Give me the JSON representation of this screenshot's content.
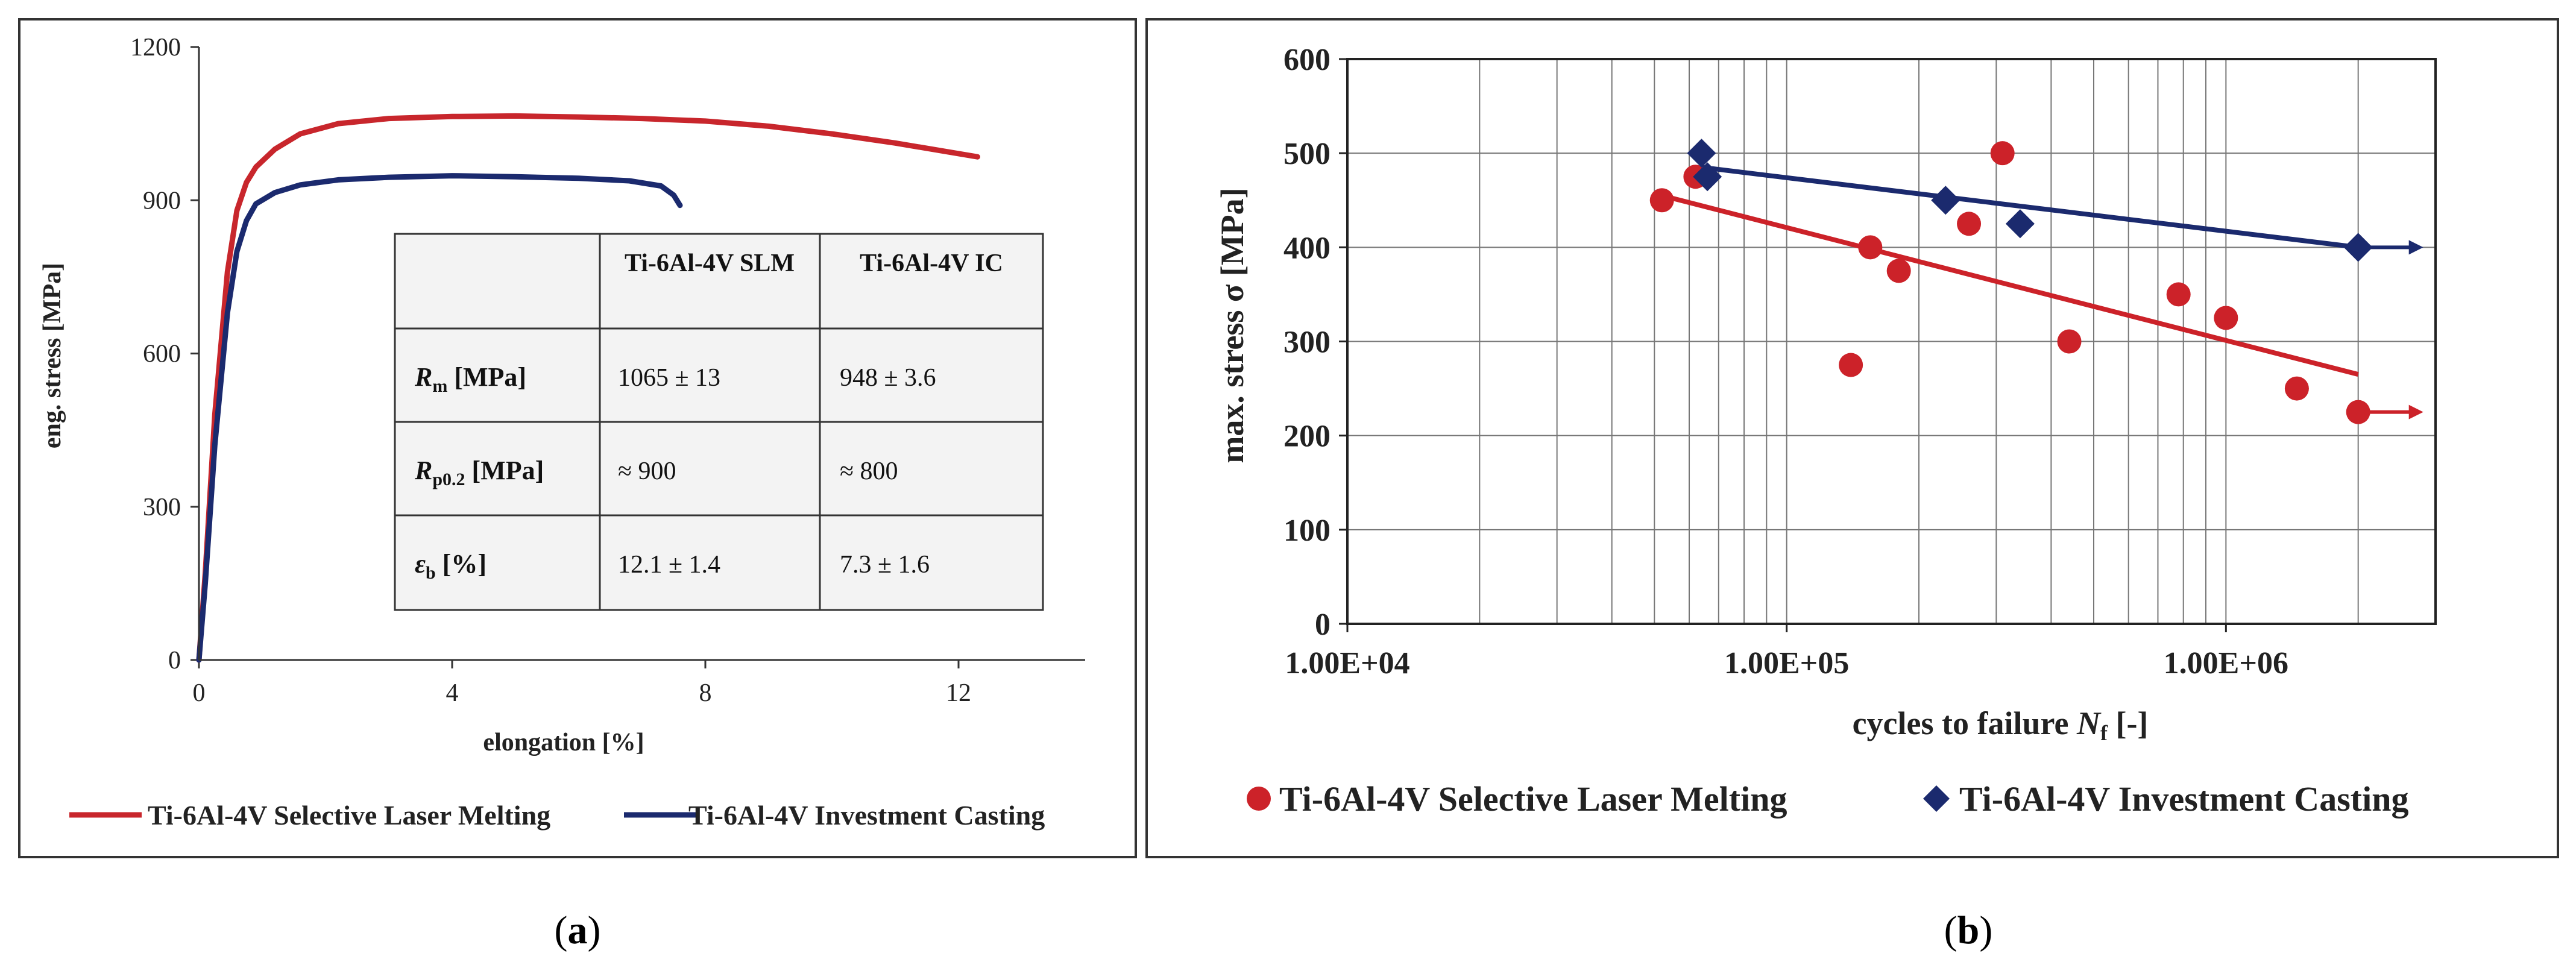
{
  "chart_data": [
    {
      "type": "line",
      "panel": "a",
      "xlabel": "elongation [%]",
      "ylabel": "eng. stress [MPa]",
      "xlim": [
        0,
        14
      ],
      "ylim": [
        0,
        1200
      ],
      "xticks": [
        0,
        4,
        8,
        12
      ],
      "yticks": [
        0,
        300,
        600,
        900,
        1200
      ],
      "grid": false,
      "legend_position": "bottom",
      "series": [
        {
          "name": "Ti-6Al-4V Selective Laser Melting",
          "color": "#c8262c",
          "x": [
            0,
            0.1,
            0.25,
            0.45,
            0.6,
            0.75,
            0.9,
            1.2,
            1.6,
            2.2,
            3,
            4,
            5,
            6,
            7,
            8,
            9,
            10,
            11,
            12.3
          ],
          "y": [
            0,
            170,
            480,
            760,
            880,
            935,
            965,
            1000,
            1030,
            1050,
            1060,
            1064,
            1065,
            1063,
            1060,
            1055,
            1045,
            1030,
            1012,
            985
          ]
        },
        {
          "name": "Ti-6Al-4V Investment Casting",
          "color": "#1b2a6e",
          "x": [
            0,
            0.1,
            0.25,
            0.45,
            0.6,
            0.75,
            0.9,
            1.2,
            1.6,
            2.2,
            3,
            4,
            5,
            6,
            6.8,
            7.3,
            7.5,
            7.6
          ],
          "y": [
            0,
            150,
            420,
            680,
            800,
            860,
            893,
            915,
            930,
            940,
            945,
            948,
            946,
            943,
            938,
            928,
            910,
            890
          ]
        }
      ],
      "table": {
        "header": [
          "",
          "Ti-6Al-4V SLM",
          "Ti-6Al-4V IC"
        ],
        "rows": [
          {
            "main": "R",
            "sub": "m",
            "unit": " [MPa]",
            "slm": "1065 ± 13",
            "ic": "948 ± 3.6"
          },
          {
            "main": "R",
            "sub": "p0.2",
            "unit": " [MPa]",
            "slm": "≈ 900",
            "ic": "≈ 800"
          },
          {
            "main": "ε",
            "sub": "b",
            "unit": " [%]",
            "slm": "12.1 ± 1.4",
            "ic": "7.3 ± 1.6"
          }
        ]
      },
      "caption": "(a)"
    },
    {
      "type": "scatter",
      "panel": "b",
      "xscale": "log",
      "xlabel_main": "cycles to failure ",
      "xlabel_var": "N",
      "xlabel_sub": "f",
      "xlabel_unit": " [-]",
      "ylabel": "max. stress σ [MPa]",
      "xlim": [
        10000,
        3000000
      ],
      "ylim": [
        0,
        600
      ],
      "xtick_labels": [
        "1.00E+04",
        "1.00E+05",
        "1.00E+06"
      ],
      "yticks": [
        0,
        100,
        200,
        300,
        400,
        500,
        600
      ],
      "grid": true,
      "legend_position": "bottom",
      "series": [
        {
          "name": "Ti-6Al-4V Selective Laser Melting",
          "marker": "circle",
          "color": "#cc2229",
          "x": [
            52000,
            62000,
            140000,
            155000,
            180000,
            260000,
            310000,
            440000,
            780000,
            1000000,
            1450000,
            2000000
          ],
          "y": [
            450,
            475,
            275,
            400,
            375,
            425,
            500,
            300,
            350,
            325,
            250,
            225
          ],
          "trend": {
            "x": [
              52000,
              2000000
            ],
            "y": [
              455,
              265
            ]
          },
          "runout": {
            "x": 2000000,
            "y": 225
          }
        },
        {
          "name": "Ti-6Al-4V Investment Casting",
          "marker": "diamond",
          "color": "#1b2a6e",
          "x": [
            64000,
            66000,
            230000,
            340000,
            2000000
          ],
          "y": [
            500,
            475,
            450,
            425,
            400
          ],
          "trend": {
            "x": [
              64000,
              2000000
            ],
            "y": [
              485,
              400
            ]
          },
          "runout": {
            "x": 2000000,
            "y": 400
          }
        }
      ],
      "caption": "(b)"
    }
  ]
}
